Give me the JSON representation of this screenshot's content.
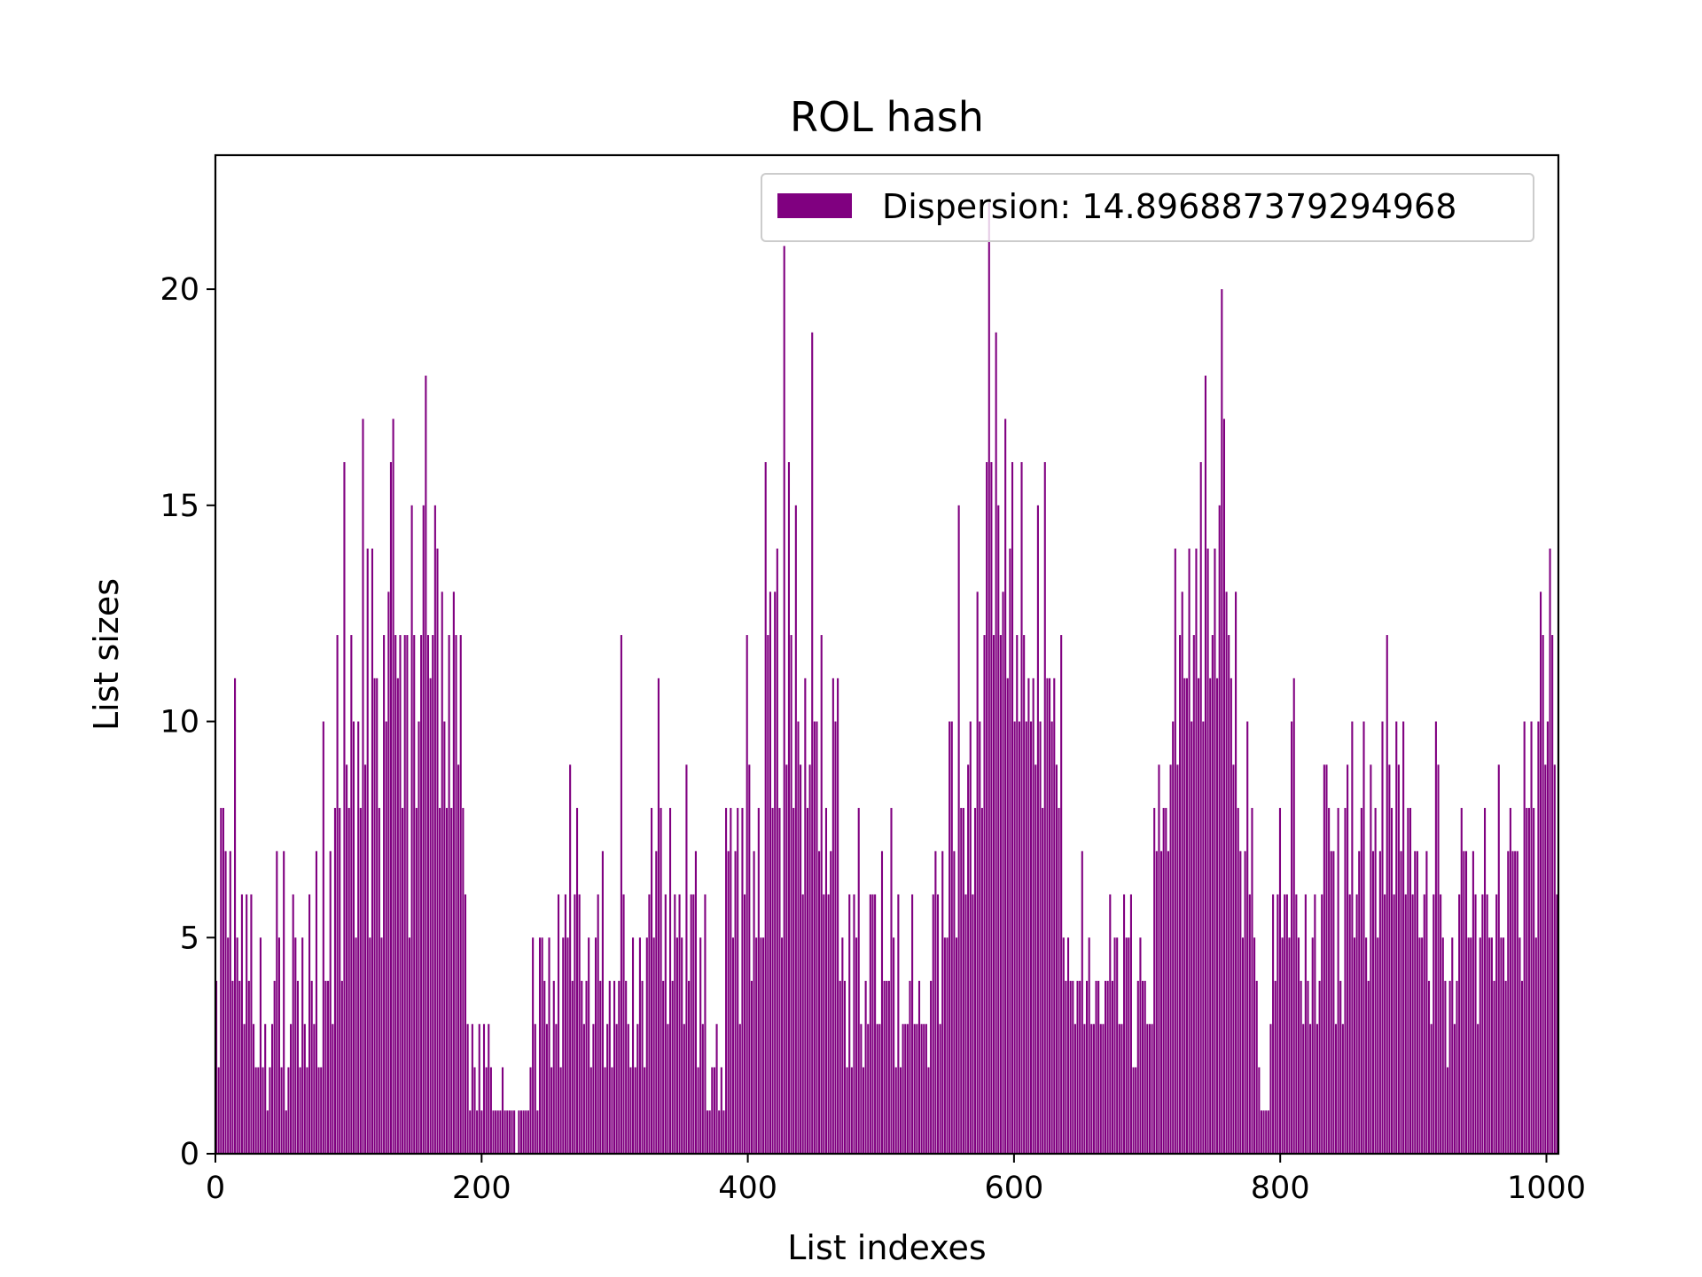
{
  "chart_data": {
    "type": "bar",
    "title": "ROL hash",
    "xlabel": "List indexes",
    "ylabel": "List sizes",
    "xlim": [
      0,
      1009
    ],
    "ylim": [
      0,
      23.1
    ],
    "xticks": [
      0,
      200,
      400,
      600,
      800,
      1000
    ],
    "yticks": [
      0,
      5,
      10,
      15,
      20
    ],
    "grid": false,
    "legend_position": "top-right",
    "series": [
      {
        "name": "Dispersion: 14.896887379294968",
        "color": "#800080",
        "values": [
          4,
          2,
          8,
          8,
          7,
          5,
          7,
          4,
          11,
          5,
          4,
          6,
          3,
          6,
          4,
          6,
          3,
          2,
          2,
          5,
          2,
          3,
          1,
          2,
          3,
          4,
          7,
          5,
          2,
          7,
          1,
          2,
          3,
          6,
          5,
          4,
          2,
          5,
          3,
          2,
          6,
          4,
          3,
          7,
          2,
          2,
          10,
          4,
          4,
          7,
          3,
          8,
          12,
          8,
          4,
          16,
          9,
          8,
          12,
          10,
          5,
          10,
          8,
          17,
          9,
          14,
          5,
          14,
          11,
          11,
          8,
          5,
          12,
          10,
          13,
          16,
          17,
          12,
          11,
          12,
          8,
          12,
          12,
          5,
          15,
          12,
          8,
          10,
          12,
          15,
          18,
          12,
          11,
          12,
          15,
          14,
          8,
          13,
          10,
          8,
          12,
          8,
          13,
          12,
          9,
          12,
          8,
          6,
          3,
          1,
          3,
          2,
          1,
          3,
          1,
          3,
          2,
          3,
          2,
          1,
          1,
          1,
          1,
          2,
          1,
          1,
          1,
          1,
          1,
          0,
          1,
          1,
          1,
          1,
          1,
          2,
          5,
          3,
          1,
          5,
          5,
          4,
          3,
          5,
          2,
          4,
          3,
          6,
          2,
          5,
          6,
          5,
          9,
          4,
          6,
          8,
          6,
          4,
          3,
          4,
          5,
          2,
          3,
          5,
          6,
          4,
          7,
          2,
          3,
          4,
          2,
          4,
          3,
          4,
          12,
          6,
          4,
          3,
          2,
          5,
          2,
          3,
          5,
          4,
          2,
          5,
          6,
          8,
          5,
          7,
          11,
          8,
          4,
          6,
          3,
          8,
          4,
          6,
          5,
          6,
          5,
          3,
          9,
          4,
          6,
          6,
          7,
          2,
          5,
          3,
          6,
          1,
          1,
          2,
          2,
          3,
          1,
          2,
          1,
          8,
          7,
          8,
          5,
          7,
          8,
          3,
          8,
          6,
          12,
          9,
          4,
          7,
          5,
          8,
          5,
          5,
          16,
          12,
          13,
          8,
          13,
          14,
          8,
          5,
          21,
          9,
          16,
          12,
          8,
          15,
          10,
          9,
          6,
          11,
          8,
          9,
          19,
          10,
          10,
          7,
          12,
          6,
          8,
          6,
          7,
          11,
          10,
          11,
          4,
          5,
          4,
          2,
          6,
          2,
          6,
          5,
          8,
          3,
          2,
          4,
          3,
          6,
          6,
          6,
          3,
          3,
          7,
          4,
          4,
          4,
          8,
          5,
          2,
          6,
          2,
          3,
          3,
          3,
          4,
          6,
          3,
          3,
          4,
          3,
          3,
          3,
          2,
          4,
          6,
          7,
          6,
          3,
          7,
          5,
          5,
          10,
          10,
          7,
          5,
          15,
          8,
          8,
          6,
          9,
          10,
          6,
          8,
          13,
          10,
          8,
          12,
          16,
          22,
          16,
          12,
          19,
          15,
          12,
          13,
          17,
          11,
          14,
          16,
          10,
          12,
          10,
          16,
          12,
          10,
          11,
          10,
          11,
          9,
          15,
          10,
          8,
          16,
          11,
          11,
          10,
          11,
          9,
          8,
          12,
          5,
          4,
          5,
          4,
          4,
          3,
          4,
          4,
          7,
          3,
          4,
          5,
          3,
          3,
          4,
          4,
          3,
          3,
          4,
          4,
          6,
          4,
          5,
          5,
          3,
          3,
          6,
          5,
          5,
          6,
          2,
          2,
          4,
          5,
          4,
          4,
          3,
          3,
          3,
          8,
          7,
          9,
          7,
          8,
          8,
          7,
          9,
          10,
          14,
          9,
          12,
          13,
          11,
          11,
          14,
          10,
          12,
          14,
          11,
          16,
          10,
          18,
          14,
          11,
          12,
          14,
          11,
          15,
          20,
          17,
          13,
          12,
          11,
          9,
          13,
          8,
          7,
          5,
          7,
          10,
          6,
          8,
          5,
          4,
          2,
          1,
          1,
          1,
          1,
          3,
          6,
          4,
          6,
          8,
          5,
          6,
          6,
          5,
          10,
          11,
          6,
          5,
          4,
          3,
          6,
          4,
          3,
          5,
          6,
          3,
          4,
          6,
          9,
          9,
          8,
          7,
          7,
          3,
          8,
          4,
          3,
          8,
          9,
          6,
          10,
          5,
          6,
          7,
          8,
          10,
          5,
          4,
          9,
          7,
          8,
          5,
          7,
          10,
          6,
          12,
          9,
          8,
          6,
          10,
          9,
          7,
          10,
          6,
          8,
          8,
          6,
          7,
          7,
          5,
          5,
          6,
          7,
          4,
          3,
          6,
          10,
          9,
          6,
          5,
          4,
          2,
          4,
          5,
          3,
          4,
          6,
          8,
          7,
          7,
          5,
          5,
          7,
          6,
          3,
          5,
          6,
          8,
          6,
          5,
          5,
          4,
          6,
          9,
          5,
          5,
          4,
          7,
          8,
          7,
          7,
          7,
          5,
          4,
          10,
          8,
          8,
          10,
          8,
          5,
          10,
          13,
          12,
          9,
          10,
          14,
          12,
          9,
          6
        ]
      }
    ]
  }
}
